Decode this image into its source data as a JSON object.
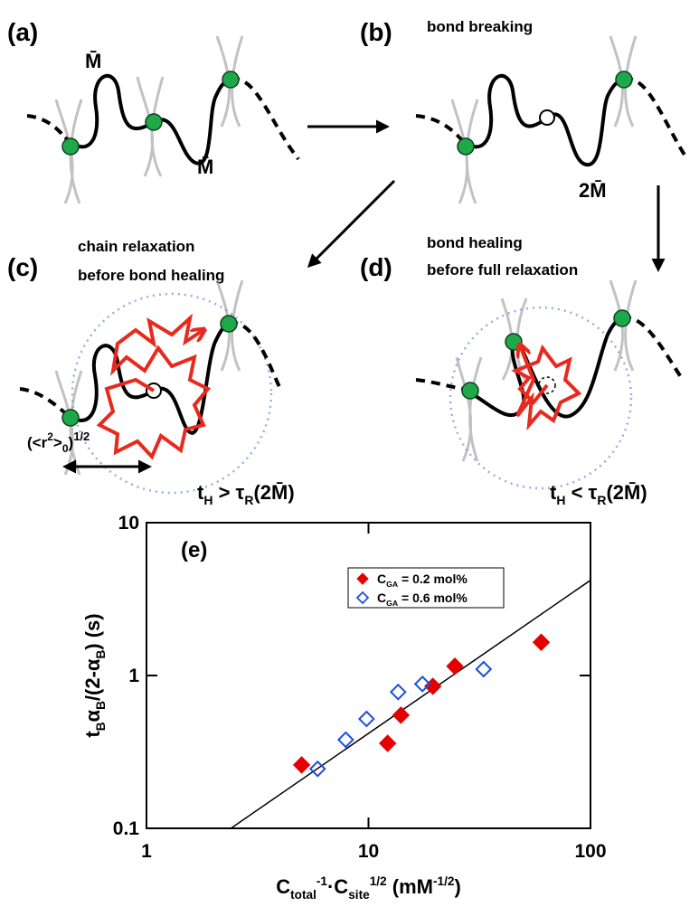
{
  "panels": {
    "a": {
      "label": "(a)",
      "m1": "M̄",
      "m2": "M̄"
    },
    "b": {
      "label": "(b)",
      "caption": "bond breaking",
      "m": "2M̄"
    },
    "c": {
      "label": "(c)",
      "caption": [
        "chain relaxation",
        "before bond healing"
      ],
      "radius": [
        "(<r",
        "2",
        ">",
        "0",
        ")",
        "1/2"
      ],
      "condition": [
        "t",
        "H",
        " > τ",
        "R",
        "(2M̄)"
      ]
    },
    "d": {
      "label": "(d)",
      "caption": [
        "bond healing",
        "before full relaxation"
      ],
      "condition": [
        "t",
        "H",
        " < τ",
        "R",
        "(2M̄)"
      ]
    }
  },
  "chart_data": {
    "type": "scatter",
    "annotation": "(e)",
    "x_label": [
      "C",
      "total",
      "-1",
      "·C",
      "site",
      "1/2",
      " (mM",
      "-1/2",
      ")"
    ],
    "y_label": [
      "t",
      "B",
      "α",
      "B",
      "/(2-α",
      "B",
      ") (s)"
    ],
    "log": true,
    "xlim": [
      1,
      100
    ],
    "ylim": [
      0.1,
      10
    ],
    "xticks": [
      1,
      10,
      100
    ],
    "yticks": [
      0.1,
      1,
      10
    ],
    "legend": "top",
    "series": [
      {
        "name": [
          "C",
          "GA",
          " = 0.2 mol%"
        ],
        "color": "#e50000",
        "filled": true,
        "x": [
          5,
          12.2,
          14,
          19.5,
          24.5,
          60
        ],
        "values": [
          0.26,
          0.36,
          0.55,
          0.85,
          1.15,
          1.65
        ]
      },
      {
        "name": [
          "C",
          "GA",
          " = 0.6 mol%"
        ],
        "color": "#1d4fe0",
        "filled": false,
        "x": [
          5.9,
          7.9,
          9.8,
          13.6,
          17.5,
          33
        ],
        "values": [
          0.245,
          0.38,
          0.52,
          0.78,
          0.88,
          1.1
        ]
      }
    ],
    "fit": {
      "color": "#000000",
      "x": [
        2.4,
        100
      ],
      "values": [
        0.1,
        4.2
      ]
    }
  }
}
